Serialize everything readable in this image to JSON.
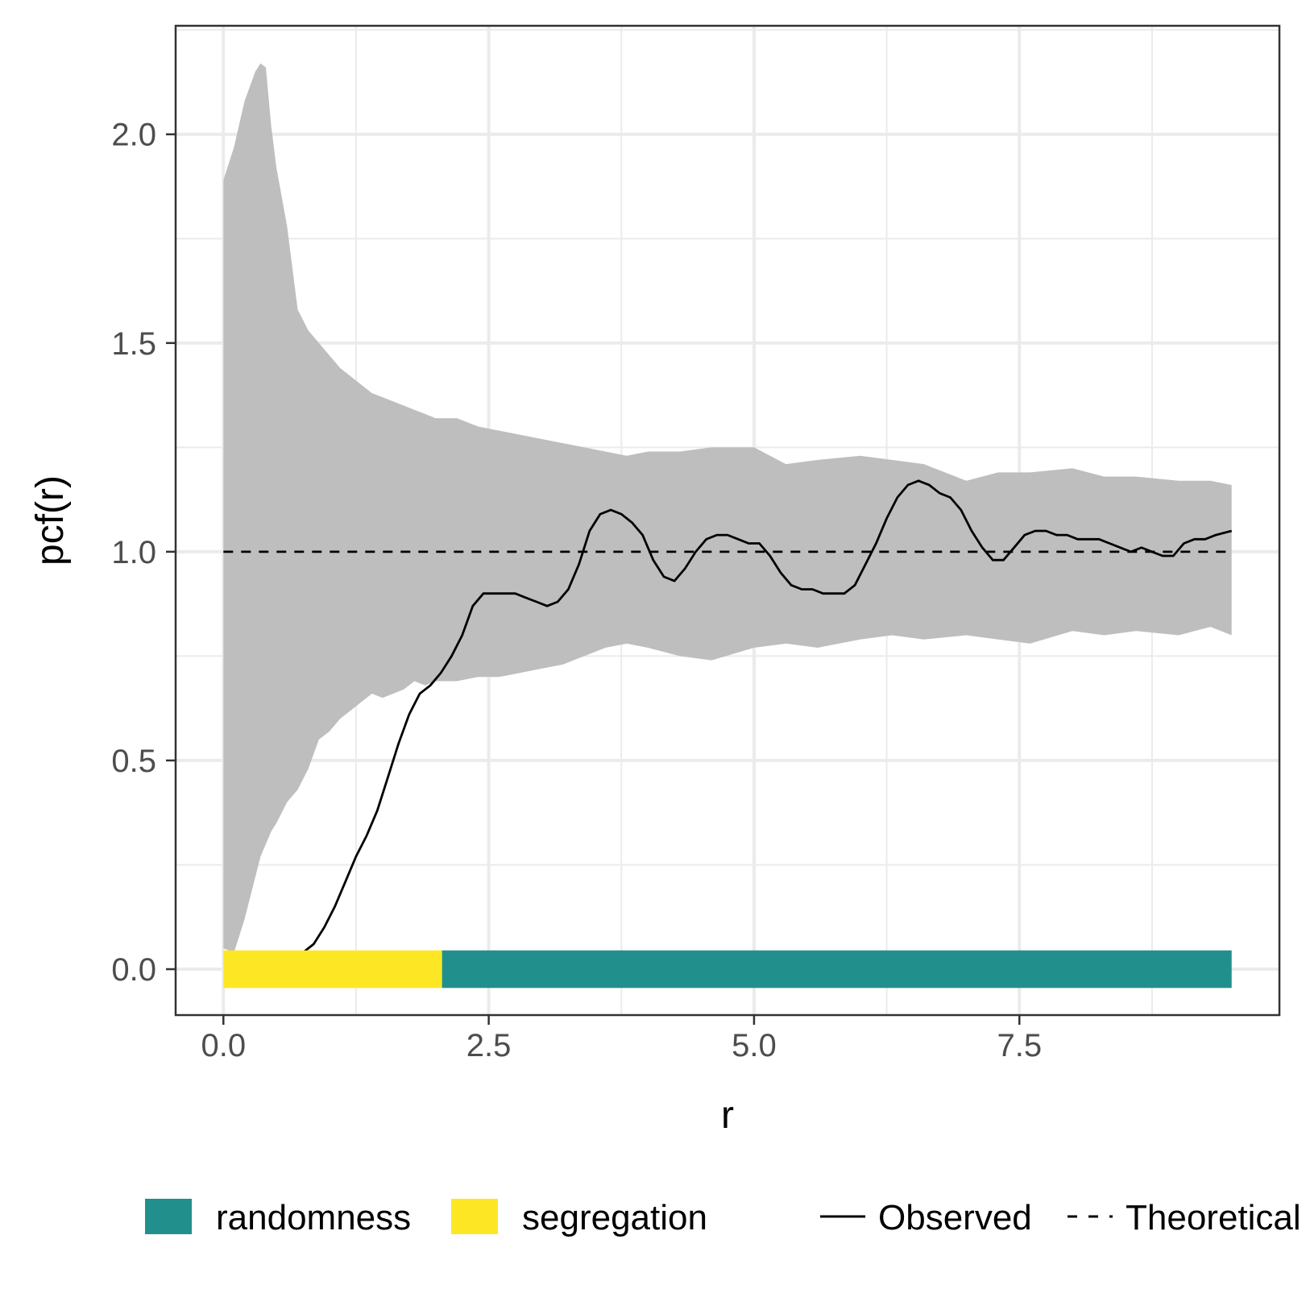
{
  "chart_data": {
    "type": "line",
    "xlabel": "r",
    "ylabel": "pcf(r)",
    "xlim": [
      -0.45,
      9.95
    ],
    "ylim": [
      -0.11,
      2.26
    ],
    "x_ticks": [
      {
        "value": 0.0,
        "label": "0.0"
      },
      {
        "value": 2.5,
        "label": "2.5"
      },
      {
        "value": 5.0,
        "label": "5.0"
      },
      {
        "value": 7.5,
        "label": "7.5"
      }
    ],
    "y_ticks": [
      {
        "value": 0.0,
        "label": "0.0"
      },
      {
        "value": 0.5,
        "label": "0.5"
      },
      {
        "value": 1.0,
        "label": "1.0"
      },
      {
        "value": 1.5,
        "label": "1.5"
      },
      {
        "value": 2.0,
        "label": "2.0"
      }
    ],
    "grid": true,
    "colors": {
      "envelope": "#bebebe",
      "observed": "#000000",
      "theoretical": "#000000",
      "randomness": "#21908c",
      "segregation": "#fde725",
      "grid": "#ebebeb",
      "panel_border": "#333333"
    },
    "envelope": {
      "x": [
        0.0,
        0.1,
        0.2,
        0.3,
        0.35,
        0.4,
        0.45,
        0.5,
        0.6,
        0.7,
        0.8,
        0.9,
        1.0,
        1.1,
        1.2,
        1.3,
        1.4,
        1.5,
        1.6,
        1.7,
        1.8,
        1.9,
        2.0,
        2.2,
        2.4,
        2.6,
        2.8,
        3.0,
        3.2,
        3.4,
        3.6,
        3.8,
        4.0,
        4.3,
        4.6,
        5.0,
        5.3,
        5.6,
        6.0,
        6.3,
        6.6,
        7.0,
        7.3,
        7.6,
        8.0,
        8.3,
        8.6,
        9.0,
        9.3,
        9.5
      ],
      "upper": [
        1.89,
        1.97,
        2.08,
        2.15,
        2.17,
        2.16,
        2.02,
        1.92,
        1.78,
        1.58,
        1.53,
        1.5,
        1.47,
        1.44,
        1.42,
        1.4,
        1.38,
        1.37,
        1.36,
        1.35,
        1.34,
        1.33,
        1.32,
        1.32,
        1.3,
        1.29,
        1.28,
        1.27,
        1.26,
        1.25,
        1.24,
        1.23,
        1.24,
        1.24,
        1.25,
        1.25,
        1.21,
        1.22,
        1.23,
        1.22,
        1.21,
        1.17,
        1.19,
        1.19,
        1.2,
        1.18,
        1.18,
        1.17,
        1.17,
        1.16
      ],
      "lower": [
        0.05,
        0.04,
        0.12,
        0.22,
        0.27,
        0.3,
        0.33,
        0.35,
        0.4,
        0.43,
        0.48,
        0.55,
        0.57,
        0.6,
        0.62,
        0.64,
        0.66,
        0.65,
        0.66,
        0.67,
        0.69,
        0.68,
        0.69,
        0.69,
        0.7,
        0.7,
        0.71,
        0.72,
        0.73,
        0.75,
        0.77,
        0.78,
        0.77,
        0.75,
        0.74,
        0.77,
        0.78,
        0.77,
        0.79,
        0.8,
        0.79,
        0.8,
        0.79,
        0.78,
        0.81,
        0.8,
        0.81,
        0.8,
        0.82,
        0.8
      ]
    },
    "series": [
      {
        "name": "Observed",
        "style": "solid",
        "x": [
          0.75,
          0.85,
          0.95,
          1.05,
          1.15,
          1.25,
          1.35,
          1.45,
          1.55,
          1.65,
          1.75,
          1.85,
          1.95,
          2.05,
          2.15,
          2.25,
          2.35,
          2.45,
          2.55,
          2.65,
          2.75,
          2.85,
          2.95,
          3.05,
          3.15,
          3.25,
          3.35,
          3.45,
          3.55,
          3.65,
          3.75,
          3.85,
          3.95,
          4.05,
          4.15,
          4.25,
          4.35,
          4.45,
          4.55,
          4.65,
          4.75,
          4.85,
          4.95,
          5.05,
          5.15,
          5.25,
          5.35,
          5.45,
          5.55,
          5.65,
          5.75,
          5.85,
          5.95,
          6.05,
          6.15,
          6.25,
          6.35,
          6.45,
          6.55,
          6.65,
          6.75,
          6.85,
          6.95,
          7.05,
          7.15,
          7.25,
          7.35,
          7.45,
          7.55,
          7.65,
          7.75,
          7.85,
          7.95,
          8.05,
          8.15,
          8.25,
          8.35,
          8.45,
          8.55,
          8.65,
          8.75,
          8.85,
          8.95,
          9.05,
          9.15,
          9.25,
          9.35,
          9.5
        ],
        "values": [
          0.04,
          0.06,
          0.1,
          0.15,
          0.21,
          0.27,
          0.32,
          0.38,
          0.46,
          0.54,
          0.61,
          0.66,
          0.68,
          0.71,
          0.75,
          0.8,
          0.87,
          0.9,
          0.9,
          0.9,
          0.9,
          0.89,
          0.88,
          0.87,
          0.88,
          0.91,
          0.97,
          1.05,
          1.09,
          1.1,
          1.09,
          1.07,
          1.04,
          0.98,
          0.94,
          0.93,
          0.96,
          1.0,
          1.03,
          1.04,
          1.04,
          1.03,
          1.02,
          1.02,
          0.99,
          0.95,
          0.92,
          0.91,
          0.91,
          0.9,
          0.9,
          0.9,
          0.92,
          0.97,
          1.02,
          1.08,
          1.13,
          1.16,
          1.17,
          1.16,
          1.14,
          1.13,
          1.1,
          1.05,
          1.01,
          0.98,
          0.98,
          1.01,
          1.04,
          1.05,
          1.05,
          1.04,
          1.04,
          1.03,
          1.03,
          1.03,
          1.02,
          1.01,
          1.0,
          1.01,
          1.0,
          0.99,
          0.99,
          1.02,
          1.03,
          1.03,
          1.04,
          1.05
        ]
      },
      {
        "name": "Theoretical",
        "style": "dashed",
        "x": [
          0.0,
          9.5
        ],
        "values": [
          1.0,
          1.0
        ]
      }
    ],
    "bands": [
      {
        "label": "segregation",
        "x0": 0.0,
        "x1": 2.06,
        "color": "#fde725"
      },
      {
        "label": "randomness",
        "x0": 2.06,
        "x1": 9.5,
        "color": "#21908c"
      }
    ],
    "legend": {
      "position": "bottom",
      "fill_items": [
        {
          "label": "randomness",
          "color": "#21908c"
        },
        {
          "label": "segregation",
          "color": "#fde725"
        }
      ],
      "line_items": [
        {
          "label": "Observed",
          "style": "solid"
        },
        {
          "label": "Theoretical",
          "style": "dashed"
        }
      ]
    }
  }
}
